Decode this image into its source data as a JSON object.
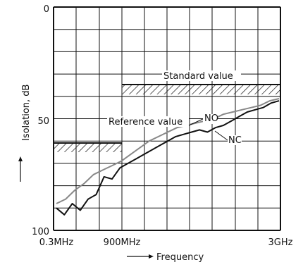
{
  "chart_data": {
    "type": "line",
    "title": "",
    "xlabel": "Frequency",
    "ylabel": "Isolation, dB",
    "x_scale": "nonlinear",
    "x_ticks": [
      "0.3MHz",
      "900MHz",
      "3GHz"
    ],
    "y_ticks": [
      0,
      50,
      100
    ],
    "ylim": [
      100,
      0
    ],
    "y_inverted": true,
    "grid": true,
    "series": [
      {
        "name": "NC",
        "color": "#111111",
        "points": [
          [
            "0.3MHz",
            90
          ],
          [
            "0.3MHz",
            93
          ],
          [
            "0.3MHz",
            88
          ],
          [
            "0.3MHz",
            91
          ],
          [
            "0.3MHz",
            86
          ],
          [
            "0.3MHz",
            84
          ],
          [
            "0.3MHz",
            76
          ],
          [
            "0.3MHz",
            77
          ],
          [
            "0.3MHz",
            72
          ],
          [
            "0.3MHz",
            70
          ],
          [
            "0.3MHz",
            68
          ],
          [
            "0.3MHz",
            66
          ],
          [
            "900MHz",
            64
          ],
          [
            "900MHz",
            62
          ],
          [
            "900MHz",
            60
          ],
          [
            "900MHz",
            58
          ],
          [
            "900MHz",
            57
          ],
          [
            "900MHz",
            56
          ],
          [
            "900MHz",
            55
          ],
          [
            "900MHz",
            56
          ],
          [
            "900MHz",
            54
          ],
          [
            "900MHz",
            53
          ],
          [
            "900MHz",
            51
          ],
          [
            "900MHz",
            49
          ],
          [
            "900MHz",
            47
          ],
          [
            "900MHz",
            46
          ],
          [
            "900MHz",
            45
          ],
          [
            "3GHz",
            43
          ],
          [
            "3GHz",
            42
          ]
        ]
      },
      {
        "name": "NO",
        "color": "#888888",
        "points": [
          [
            "0.3MHz",
            88
          ],
          [
            "0.3MHz",
            86
          ],
          [
            "0.3MHz",
            82
          ],
          [
            "0.3MHz",
            79
          ],
          [
            "0.3MHz",
            75
          ],
          [
            "0.3MHz",
            73
          ],
          [
            "0.3MHz",
            71
          ],
          [
            "0.3MHz",
            69
          ],
          [
            "900MHz",
            66
          ],
          [
            "900MHz",
            63
          ],
          [
            "900MHz",
            60
          ],
          [
            "900MHz",
            58
          ],
          [
            "900MHz",
            56
          ],
          [
            "900MHz",
            54
          ],
          [
            "900MHz",
            53
          ],
          [
            "900MHz",
            52
          ],
          [
            "900MHz",
            51
          ],
          [
            "900MHz",
            50
          ],
          [
            "900MHz",
            48
          ],
          [
            "900MHz",
            47
          ],
          [
            "900MHz",
            46
          ],
          [
            "900MHz",
            45
          ],
          [
            "900MHz",
            44
          ],
          [
            "3GHz",
            42
          ],
          [
            "3GHz",
            41
          ]
        ]
      }
    ],
    "reference_value": {
      "label": "Reference value",
      "range_x": [
        "0.3MHz",
        "900MHz"
      ],
      "isolation_db": 60
    },
    "standard_value": {
      "label": "Standard value",
      "range_x": [
        "900MHz",
        "3GHz"
      ],
      "isolation_db": 35
    }
  }
}
